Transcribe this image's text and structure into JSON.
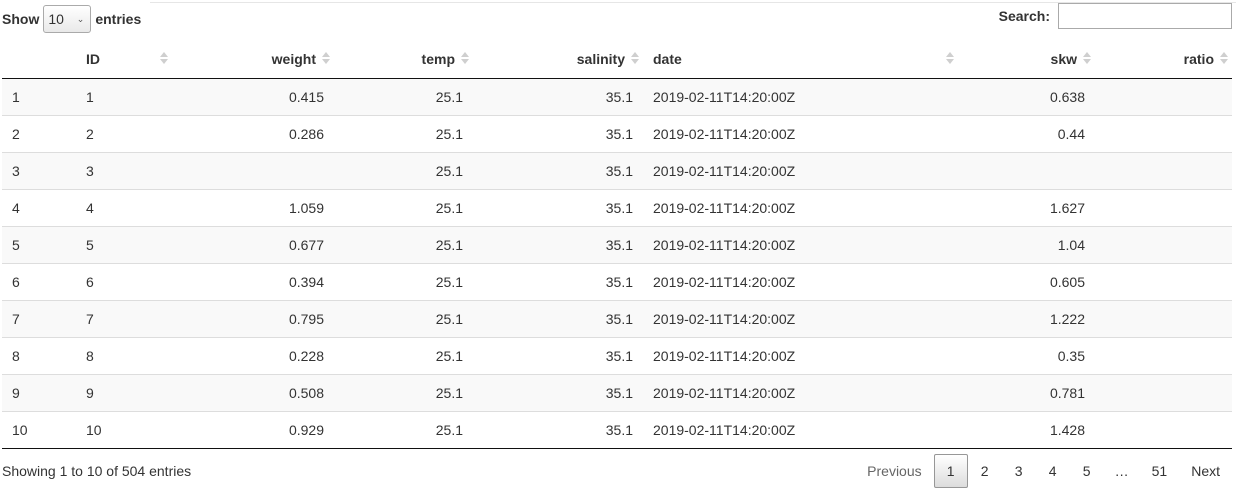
{
  "length": {
    "show_label": "Show",
    "selected": "10",
    "entries_label": "entries"
  },
  "search": {
    "label": "Search:",
    "value": ""
  },
  "table": {
    "columns": [
      "",
      "ID",
      "weight",
      "temp",
      "salinity",
      "date",
      "skw",
      "ratio"
    ],
    "rows": [
      [
        "1",
        "1",
        "0.415",
        "25.1",
        "35.1",
        "2019-02-11T14:20:00Z",
        "0.638",
        ""
      ],
      [
        "2",
        "2",
        "0.286",
        "25.1",
        "35.1",
        "2019-02-11T14:20:00Z",
        "0.44",
        ""
      ],
      [
        "3",
        "3",
        "",
        "25.1",
        "35.1",
        "2019-02-11T14:20:00Z",
        "",
        ""
      ],
      [
        "4",
        "4",
        "1.059",
        "25.1",
        "35.1",
        "2019-02-11T14:20:00Z",
        "1.627",
        ""
      ],
      [
        "5",
        "5",
        "0.677",
        "25.1",
        "35.1",
        "2019-02-11T14:20:00Z",
        "1.04",
        ""
      ],
      [
        "6",
        "6",
        "0.394",
        "25.1",
        "35.1",
        "2019-02-11T14:20:00Z",
        "0.605",
        ""
      ],
      [
        "7",
        "7",
        "0.795",
        "25.1",
        "35.1",
        "2019-02-11T14:20:00Z",
        "1.222",
        ""
      ],
      [
        "8",
        "8",
        "0.228",
        "25.1",
        "35.1",
        "2019-02-11T14:20:00Z",
        "0.35",
        ""
      ],
      [
        "9",
        "9",
        "0.508",
        "25.1",
        "35.1",
        "2019-02-11T14:20:00Z",
        "0.781",
        ""
      ],
      [
        "10",
        "10",
        "0.929",
        "25.1",
        "35.1",
        "2019-02-11T14:20:00Z",
        "1.428",
        ""
      ]
    ]
  },
  "info": "Showing 1 to 10 of 504 entries",
  "pagination": {
    "previous": "Previous",
    "pages": [
      "1",
      "2",
      "3",
      "4",
      "5",
      "…",
      "51"
    ],
    "next": "Next",
    "current": "1"
  }
}
